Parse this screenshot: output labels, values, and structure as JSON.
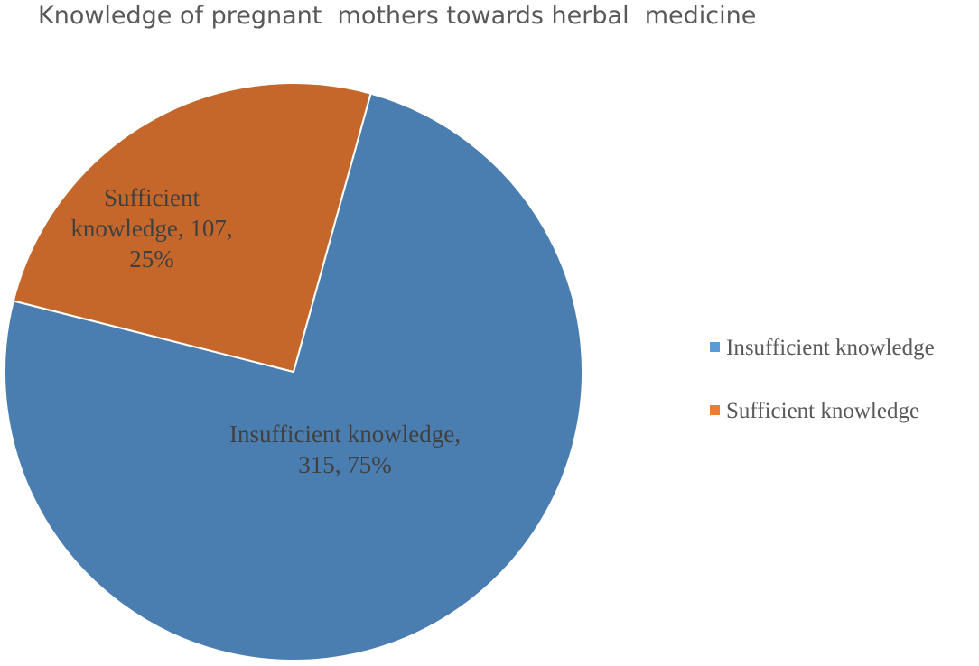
{
  "chart_data": {
    "type": "pie",
    "title": "Knowledge of pregnant  mothers towards herbal  medicine",
    "slices": [
      {
        "name": "Insufficient knowledge",
        "value": 315,
        "percent": 75,
        "color": "#4a7eb0",
        "label_lines": [
          "Insufficient knowledge,",
          "315, 75%"
        ]
      },
      {
        "name": "Sufficient knowledge",
        "value": 107,
        "percent": 25,
        "color": "#c5672a",
        "label_lines": [
          "Sufficient",
          "knowledge, 107,",
          "25%"
        ]
      }
    ],
    "legend": {
      "position": "right",
      "items": [
        {
          "label": "Insufficient knowledge",
          "color": "#5b9bd5"
        },
        {
          "label": "Sufficient knowledge",
          "color": "#ed7d31"
        }
      ]
    }
  }
}
